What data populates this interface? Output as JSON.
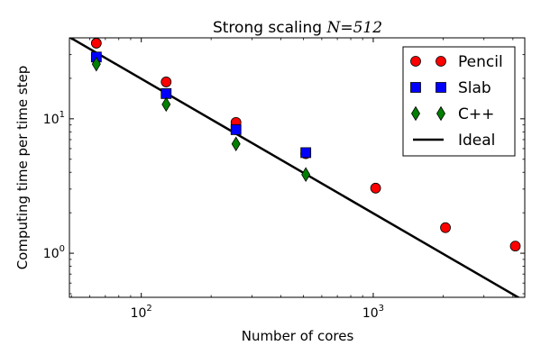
{
  "chart_data": {
    "type": "scatter",
    "title": "Strong scaling",
    "title_math": "N=512",
    "xlabel": "Number of cores",
    "ylabel": "Computing time per time step",
    "xscale": "log",
    "yscale": "log",
    "xlim": [
      49,
      4500
    ],
    "ylim": [
      0.47,
      40
    ],
    "x_major_ticks": [
      {
        "value": 100,
        "base": "10",
        "exp": "2"
      },
      {
        "value": 1000,
        "base": "10",
        "exp": "3"
      }
    ],
    "y_major_ticks": [
      {
        "value": 1,
        "base": "10",
        "exp": "0"
      },
      {
        "value": 10,
        "base": "10",
        "exp": "1"
      }
    ],
    "legend_position": "top-right",
    "series": [
      {
        "name": "Pencil",
        "marker": "circle",
        "color": "#ff0000",
        "x": [
          64,
          128,
          256,
          512,
          1024,
          2048,
          4096
        ],
        "y": [
          36.5,
          18.8,
          9.4,
          5.5,
          3.05,
          1.55,
          1.13
        ]
      },
      {
        "name": "Slab",
        "marker": "square",
        "color": "#0000ff",
        "x": [
          64,
          128,
          256,
          512
        ],
        "y": [
          28.8,
          15.4,
          8.3,
          5.6
        ]
      },
      {
        "name": "C++",
        "marker": "diamond",
        "color": "#008000",
        "x": [
          64,
          128,
          256,
          512
        ],
        "y": [
          25.5,
          12.8,
          6.5,
          3.85
        ]
      },
      {
        "name": "Ideal",
        "marker": "line",
        "color": "#000000",
        "x": [
          49,
          4500
        ],
        "y": [
          40.5,
          0.44
        ]
      }
    ]
  }
}
